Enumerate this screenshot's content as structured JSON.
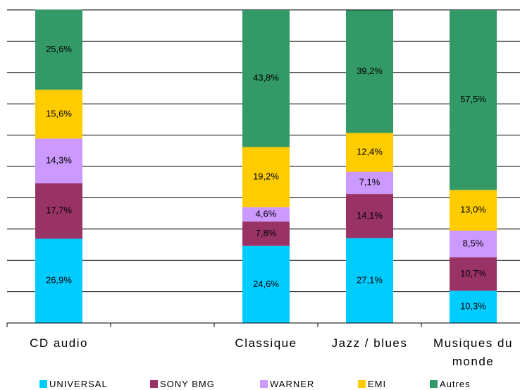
{
  "chart_data": {
    "type": "stacked_bar",
    "categories": [
      "CD audio",
      null,
      "Classique",
      "Jazz / blues",
      "Musiques du monde"
    ],
    "series": [
      {
        "name": "UNIVERSAL",
        "color": "#00ccff",
        "values": [
          26.9,
          null,
          24.6,
          27.1,
          10.3
        ],
        "value_labels": [
          "26,9%",
          null,
          "24,6%",
          "27,1%",
          "10,3%"
        ]
      },
      {
        "name": "SONY BMG",
        "color": "#993366",
        "values": [
          17.7,
          null,
          7.8,
          14.1,
          10.7
        ],
        "value_labels": [
          "17,7%",
          null,
          "7,8%",
          "14,1%",
          "10,7%"
        ]
      },
      {
        "name": "WARNER",
        "color": "#cc99ff",
        "values": [
          14.3,
          null,
          4.6,
          7.1,
          8.5
        ],
        "value_labels": [
          "14,3%",
          null,
          "4,6%",
          "7,1%",
          "8,5%"
        ]
      },
      {
        "name": "EMI",
        "color": "#ffcc00",
        "values": [
          15.6,
          null,
          19.2,
          12.4,
          13.0
        ],
        "value_labels": [
          "15,6%",
          null,
          "19,2%",
          "12,4%",
          "13,0%"
        ]
      },
      {
        "name": "Autres",
        "color": "#339966",
        "values": [
          25.6,
          null,
          43.8,
          39.2,
          57.5
        ],
        "value_labels": [
          "25,6%",
          null,
          "43,8%",
          "39,2%",
          "57,5%"
        ]
      }
    ],
    "ylim": [
      0,
      100
    ],
    "yticks": [
      0,
      10,
      20,
      30,
      40,
      50,
      60,
      70,
      80,
      90,
      100
    ],
    "grid": true,
    "legend": "bottom"
  }
}
